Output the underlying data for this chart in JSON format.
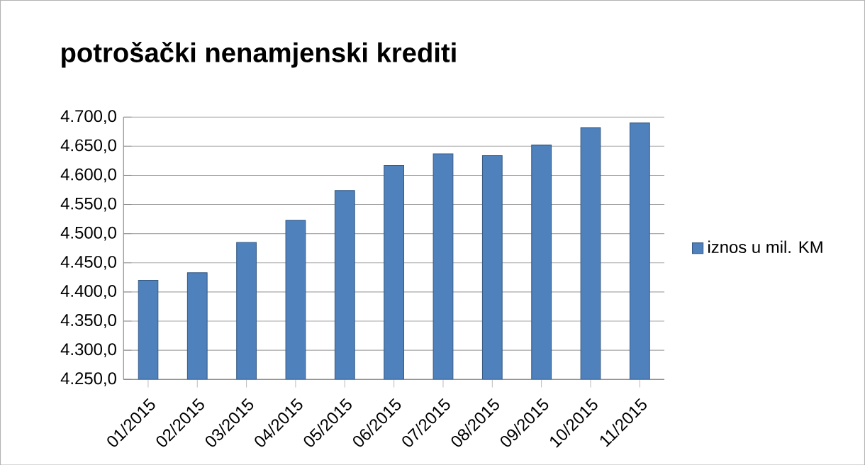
{
  "chart_data": {
    "type": "bar",
    "title": "potrošački nenamjenski krediti",
    "categories": [
      "01/2015",
      "02/2015",
      "03/2015",
      "04/2015",
      "05/2015",
      "06/2015",
      "07/2015",
      "08/2015",
      "09/2015",
      "10/2015",
      "11/2015"
    ],
    "series": [
      {
        "name": "iznos u mil. KM",
        "color": "#4f81bd",
        "values": [
          4420,
          4433,
          4485,
          4523,
          4574,
          4617,
          4637,
          4634,
          4652,
          4682,
          4690
        ]
      }
    ],
    "ylim": [
      4250,
      4700
    ],
    "yticks": [
      {
        "value": 4250,
        "label": "4.250,0"
      },
      {
        "value": 4300,
        "label": "4.300,0"
      },
      {
        "value": 4350,
        "label": "4.350,0"
      },
      {
        "value": 4400,
        "label": "4.400,0"
      },
      {
        "value": 4450,
        "label": "4.450,0"
      },
      {
        "value": 4500,
        "label": "4.500,0"
      },
      {
        "value": 4550,
        "label": "4.550,0"
      },
      {
        "value": 4600,
        "label": "4.600,0"
      },
      {
        "value": 4650,
        "label": "4.650,0"
      },
      {
        "value": 4700,
        "label": "4.700,0"
      }
    ],
    "grid": "y",
    "legend": "right"
  }
}
